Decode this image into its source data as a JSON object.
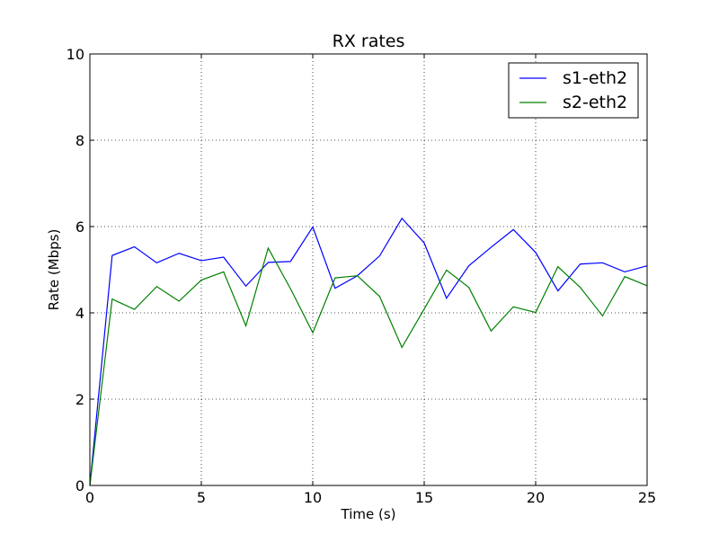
{
  "chart_data": {
    "type": "line",
    "title": "RX rates",
    "xlabel": "Time (s)",
    "ylabel": "Rate (Mbps)",
    "xlim": [
      0,
      25
    ],
    "ylim": [
      0,
      10
    ],
    "grid": true,
    "legend_position": "top-right",
    "x_ticks": [
      0,
      5,
      10,
      15,
      20,
      25
    ],
    "y_ticks": [
      0,
      2,
      4,
      6,
      8,
      10
    ],
    "x": [
      0,
      1,
      2,
      3,
      4,
      5,
      6,
      7,
      8,
      9,
      10,
      11,
      12,
      13,
      14,
      15,
      16,
      17,
      18,
      19,
      20,
      21,
      22,
      23,
      24,
      25
    ],
    "series": [
      {
        "name": "s1-eth2",
        "color": "#0000ff",
        "values": [
          0.0,
          5.33,
          5.53,
          5.16,
          5.38,
          5.21,
          5.29,
          4.62,
          5.17,
          5.19,
          5.99,
          4.57,
          4.86,
          5.32,
          6.19,
          5.62,
          4.34,
          5.09,
          5.52,
          5.93,
          5.4,
          4.51,
          5.13,
          5.16,
          4.95,
          5.09
        ]
      },
      {
        "name": "s2-eth2",
        "color": "#008000",
        "values": [
          0.0,
          4.32,
          4.08,
          4.61,
          4.27,
          4.76,
          4.95,
          3.7,
          5.5,
          4.56,
          3.54,
          4.81,
          4.86,
          4.38,
          3.2,
          4.09,
          4.99,
          4.59,
          3.58,
          4.14,
          4.01,
          5.07,
          4.59,
          3.93,
          4.84,
          4.63
        ]
      }
    ]
  }
}
